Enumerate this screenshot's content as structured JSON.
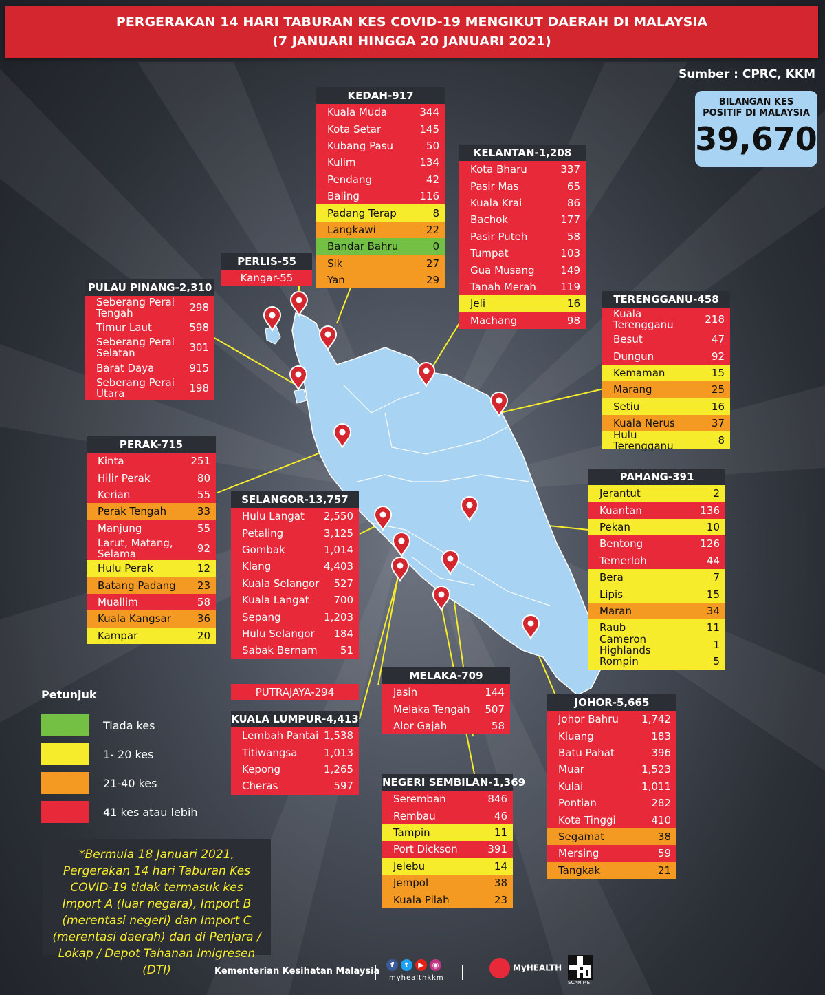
{
  "header": {
    "title_line1": "PERGERAKAN 14 HARI TABURAN KES COVID-19 MENGIKUT DAERAH DI MALAYSIA",
    "title_line2": "(7 JANUARI HINGGA 20 JANUARI 2021)"
  },
  "source": "Sumber : CPRC, KKM",
  "total": {
    "label_line1": "BILANGAN KES",
    "label_line2": "POSITIF DI MALAYSIA",
    "value": "39,670"
  },
  "colors": {
    "none": "#74c044",
    "low": "#f7ec2b",
    "mid": "#f49a22",
    "high": "#e8293a"
  },
  "states": {
    "kedah": {
      "title": "KEDAH-917",
      "districts": [
        {
          "name": "Kuala Muda",
          "value": "344",
          "level": "red"
        },
        {
          "name": "Kota Setar",
          "value": "145",
          "level": "red"
        },
        {
          "name": "Kubang Pasu",
          "value": "50",
          "level": "red"
        },
        {
          "name": "Kulim",
          "value": "134",
          "level": "red"
        },
        {
          "name": "Pendang",
          "value": "42",
          "level": "red"
        },
        {
          "name": "Baling",
          "value": "116",
          "level": "red"
        },
        {
          "name": "Padang Terap",
          "value": "8",
          "level": "yel"
        },
        {
          "name": "Langkawi",
          "value": "22",
          "level": "ora"
        },
        {
          "name": "Bandar Bahru",
          "value": "0",
          "level": "gre"
        },
        {
          "name": "Sik",
          "value": "27",
          "level": "ora"
        },
        {
          "name": "Yan",
          "value": "29",
          "level": "ora"
        }
      ]
    },
    "kelantan": {
      "title": "KELANTAN-1,208",
      "districts": [
        {
          "name": "Kota Bharu",
          "value": "337",
          "level": "red"
        },
        {
          "name": "Pasir Mas",
          "value": "65",
          "level": "red"
        },
        {
          "name": "Kuala Krai",
          "value": "86",
          "level": "red"
        },
        {
          "name": "Bachok",
          "value": "177",
          "level": "red"
        },
        {
          "name": "Pasir Puteh",
          "value": "58",
          "level": "red"
        },
        {
          "name": "Tumpat",
          "value": "103",
          "level": "red"
        },
        {
          "name": "Gua Musang",
          "value": "149",
          "level": "red"
        },
        {
          "name": "Tanah Merah",
          "value": "119",
          "level": "red"
        },
        {
          "name": "Jeli",
          "value": "16",
          "level": "yel"
        },
        {
          "name": "Machang",
          "value": "98",
          "level": "red"
        }
      ]
    },
    "perlis": {
      "title": "PERLIS-55",
      "district": "Kangar-55"
    },
    "pulau_pinang": {
      "title": "PULAU PINANG-2,310",
      "districts": [
        {
          "name": "Seberang Perai Tengah",
          "value": "298",
          "level": "red",
          "tall": true
        },
        {
          "name": "Timur Laut",
          "value": "598",
          "level": "red"
        },
        {
          "name": "Seberang Perai Selatan",
          "value": "301",
          "level": "red",
          "tall": true
        },
        {
          "name": "Barat Daya",
          "value": "915",
          "level": "red"
        },
        {
          "name": "Seberang Perai Utara",
          "value": "198",
          "level": "red",
          "tall": true
        }
      ]
    },
    "terengganu": {
      "title": "TERENGGANU-458",
      "districts": [
        {
          "name": "Kuala Terengganu",
          "value": "218",
          "level": "red",
          "tall": true
        },
        {
          "name": "Besut",
          "value": "47",
          "level": "red"
        },
        {
          "name": "Dungun",
          "value": "92",
          "level": "red"
        },
        {
          "name": "Kemaman",
          "value": "15",
          "level": "yel"
        },
        {
          "name": "Marang",
          "value": "25",
          "level": "ora"
        },
        {
          "name": "Setiu",
          "value": "16",
          "level": "yel"
        },
        {
          "name": "Kuala Nerus",
          "value": "37",
          "level": "ora"
        },
        {
          "name": "Hulu Terengganu",
          "value": "8",
          "level": "yel"
        }
      ]
    },
    "perak": {
      "title": "PERAK-715",
      "districts": [
        {
          "name": "Kinta",
          "value": "251",
          "level": "red"
        },
        {
          "name": "Hilir Perak",
          "value": "80",
          "level": "red"
        },
        {
          "name": "Kerian",
          "value": "55",
          "level": "red"
        },
        {
          "name": "Perak Tengah",
          "value": "33",
          "level": "ora"
        },
        {
          "name": "Manjung",
          "value": "55",
          "level": "red"
        },
        {
          "name": "Larut, Matang, Selama",
          "value": "92",
          "level": "red",
          "tall": true
        },
        {
          "name": "Hulu Perak",
          "value": "12",
          "level": "yel"
        },
        {
          "name": "Batang Padang",
          "value": "23",
          "level": "ora"
        },
        {
          "name": "Muallim",
          "value": "58",
          "level": "red"
        },
        {
          "name": "Kuala Kangsar",
          "value": "36",
          "level": "ora"
        },
        {
          "name": "Kampar",
          "value": "20",
          "level": "yel"
        }
      ]
    },
    "selangor": {
      "title": "SELANGOR-13,757",
      "districts": [
        {
          "name": "Hulu Langat",
          "value": "2,550",
          "level": "red"
        },
        {
          "name": "Petaling",
          "value": "3,125",
          "level": "red"
        },
        {
          "name": "Gombak",
          "value": "1,014",
          "level": "red"
        },
        {
          "name": "Klang",
          "value": "4,403",
          "level": "red"
        },
        {
          "name": "Kuala Selangor",
          "value": "527",
          "level": "red"
        },
        {
          "name": "Kuala Langat",
          "value": "700",
          "level": "red"
        },
        {
          "name": "Sepang",
          "value": "1,203",
          "level": "red"
        },
        {
          "name": "Hulu Selangor",
          "value": "184",
          "level": "red"
        },
        {
          "name": "Sabak Bernam",
          "value": "51",
          "level": "red"
        }
      ]
    },
    "pahang": {
      "title": "PAHANG-391",
      "districts": [
        {
          "name": "Jerantut",
          "value": "2",
          "level": "yel"
        },
        {
          "name": "Kuantan",
          "value": "136",
          "level": "red"
        },
        {
          "name": "Pekan",
          "value": "10",
          "level": "yel"
        },
        {
          "name": "Bentong",
          "value": "126",
          "level": "red"
        },
        {
          "name": "Temerloh",
          "value": "44",
          "level": "red"
        },
        {
          "name": "Bera",
          "value": "7",
          "level": "yel"
        },
        {
          "name": "Lipis",
          "value": "15",
          "level": "yel"
        },
        {
          "name": "Maran",
          "value": "34",
          "level": "ora"
        },
        {
          "name": "Raub",
          "value": "11",
          "level": "yel"
        },
        {
          "name": "Cameron Highlands",
          "value": "1",
          "level": "yel"
        },
        {
          "name": "Rompin",
          "value": "5",
          "level": "yel"
        }
      ]
    },
    "putrajaya": {
      "title": "PUTRAJAYA-294"
    },
    "kuala_lumpur": {
      "title": "KUALA LUMPUR-4,413",
      "districts": [
        {
          "name": "Lembah Pantai",
          "value": "1,538",
          "level": "red"
        },
        {
          "name": "Titiwangsa",
          "value": "1,013",
          "level": "red"
        },
        {
          "name": "Kepong",
          "value": "1,265",
          "level": "red"
        },
        {
          "name": "Cheras",
          "value": "597",
          "level": "red"
        }
      ]
    },
    "melaka": {
      "title": "MELAKA-709",
      "districts": [
        {
          "name": "Jasin",
          "value": "144",
          "level": "red"
        },
        {
          "name": "Melaka Tengah",
          "value": "507",
          "level": "red"
        },
        {
          "name": "Alor Gajah",
          "value": "58",
          "level": "red"
        }
      ]
    },
    "negeri_sembilan": {
      "title": "NEGERI SEMBILAN-1,369",
      "districts": [
        {
          "name": "Seremban",
          "value": "846",
          "level": "red"
        },
        {
          "name": "Rembau",
          "value": "46",
          "level": "red"
        },
        {
          "name": "Tampin",
          "value": "11",
          "level": "yel"
        },
        {
          "name": "Port Dickson",
          "value": "391",
          "level": "red"
        },
        {
          "name": "Jelebu",
          "value": "14",
          "level": "yel"
        },
        {
          "name": "Jempol",
          "value": "38",
          "level": "ora"
        },
        {
          "name": "Kuala Pilah",
          "value": "23",
          "level": "ora"
        }
      ]
    },
    "johor": {
      "title": "JOHOR-5,665",
      "districts": [
        {
          "name": "Johor Bahru",
          "value": "1,742",
          "level": "red"
        },
        {
          "name": "Kluang",
          "value": "183",
          "level": "red"
        },
        {
          "name": "Batu Pahat",
          "value": "396",
          "level": "red"
        },
        {
          "name": "Muar",
          "value": "1,523",
          "level": "red"
        },
        {
          "name": "Kulai",
          "value": "1,011",
          "level": "red"
        },
        {
          "name": "Pontian",
          "value": "282",
          "level": "red"
        },
        {
          "name": "Kota Tinggi",
          "value": "410",
          "level": "red"
        },
        {
          "name": "Segamat",
          "value": "38",
          "level": "ora"
        },
        {
          "name": "Mersing",
          "value": "59",
          "level": "red"
        },
        {
          "name": "Tangkak",
          "value": "21",
          "level": "ora"
        }
      ]
    }
  },
  "legend": {
    "title": "Petunjuk",
    "items": [
      {
        "label": "Tiada kes",
        "color": "#74c044"
      },
      {
        "label": "1- 20 kes",
        "color": "#f7ec2b"
      },
      {
        "label": "21-40 kes",
        "color": "#f49a22"
      },
      {
        "label": "41 kes atau lebih",
        "color": "#e8293a"
      }
    ]
  },
  "note": "*Bermula 18 Januari 2021, Pergerakan 14 hari Taburan Kes COVID-19 tidak termasuk kes Import A (luar negara), Import B (merentasi negeri) dan Import C (merentasi daerah) dan di Penjara / Lokap / Depot Tahanan Imigresen (DTI)",
  "footer": {
    "ministry": "Kementerian Kesihatan Malaysia",
    "handle": "myhealthkkm",
    "brand": "MyHEALTH",
    "qr_caption": "SCAN ME"
  }
}
